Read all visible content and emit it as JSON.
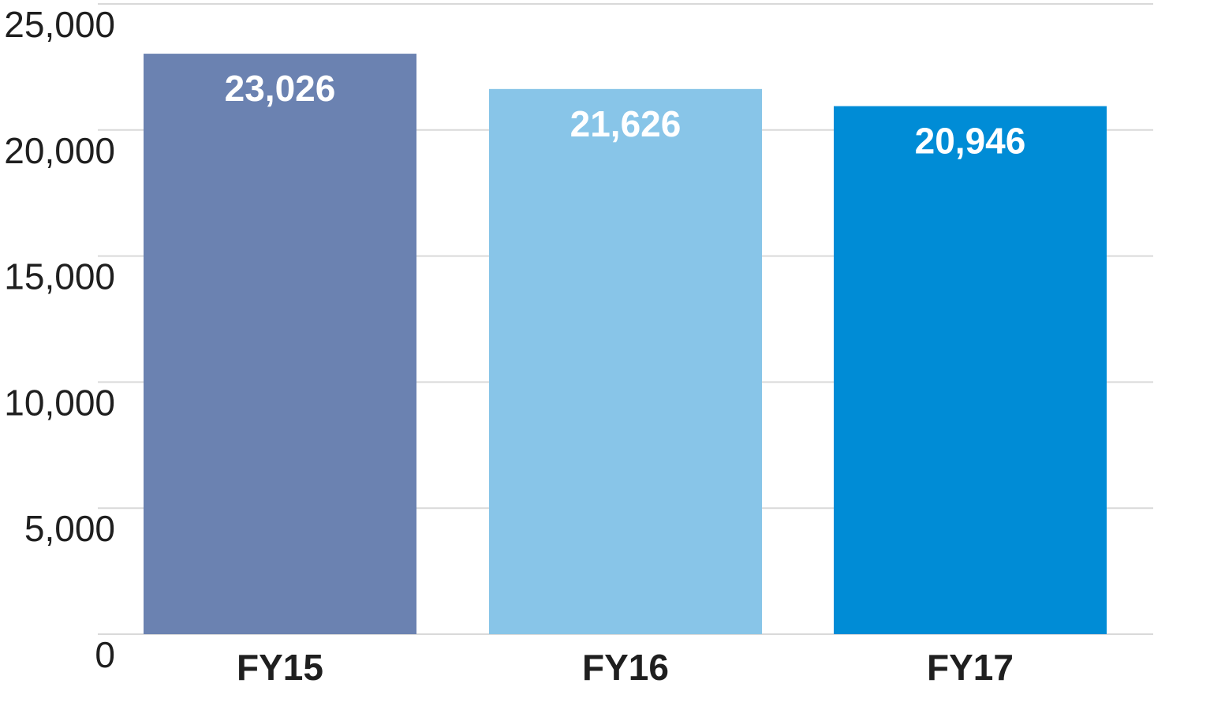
{
  "chart_data": {
    "type": "bar",
    "categories": [
      "FY15",
      "FY16",
      "FY17"
    ],
    "values": [
      23026,
      21626,
      20946
    ],
    "value_labels": [
      "23,026",
      "21,626",
      "20,946"
    ],
    "bar_colors": [
      "#6b82b1",
      "#88c5e8",
      "#008cd6"
    ],
    "ylim": [
      0,
      25000
    ],
    "y_ticks": [
      0,
      5000,
      10000,
      15000,
      20000,
      25000
    ],
    "y_tick_labels": [
      "0",
      "5,000",
      "10,000",
      "15,000",
      "20,000",
      "25,000"
    ],
    "grid": true,
    "title": "",
    "xlabel": "",
    "ylabel": ""
  }
}
